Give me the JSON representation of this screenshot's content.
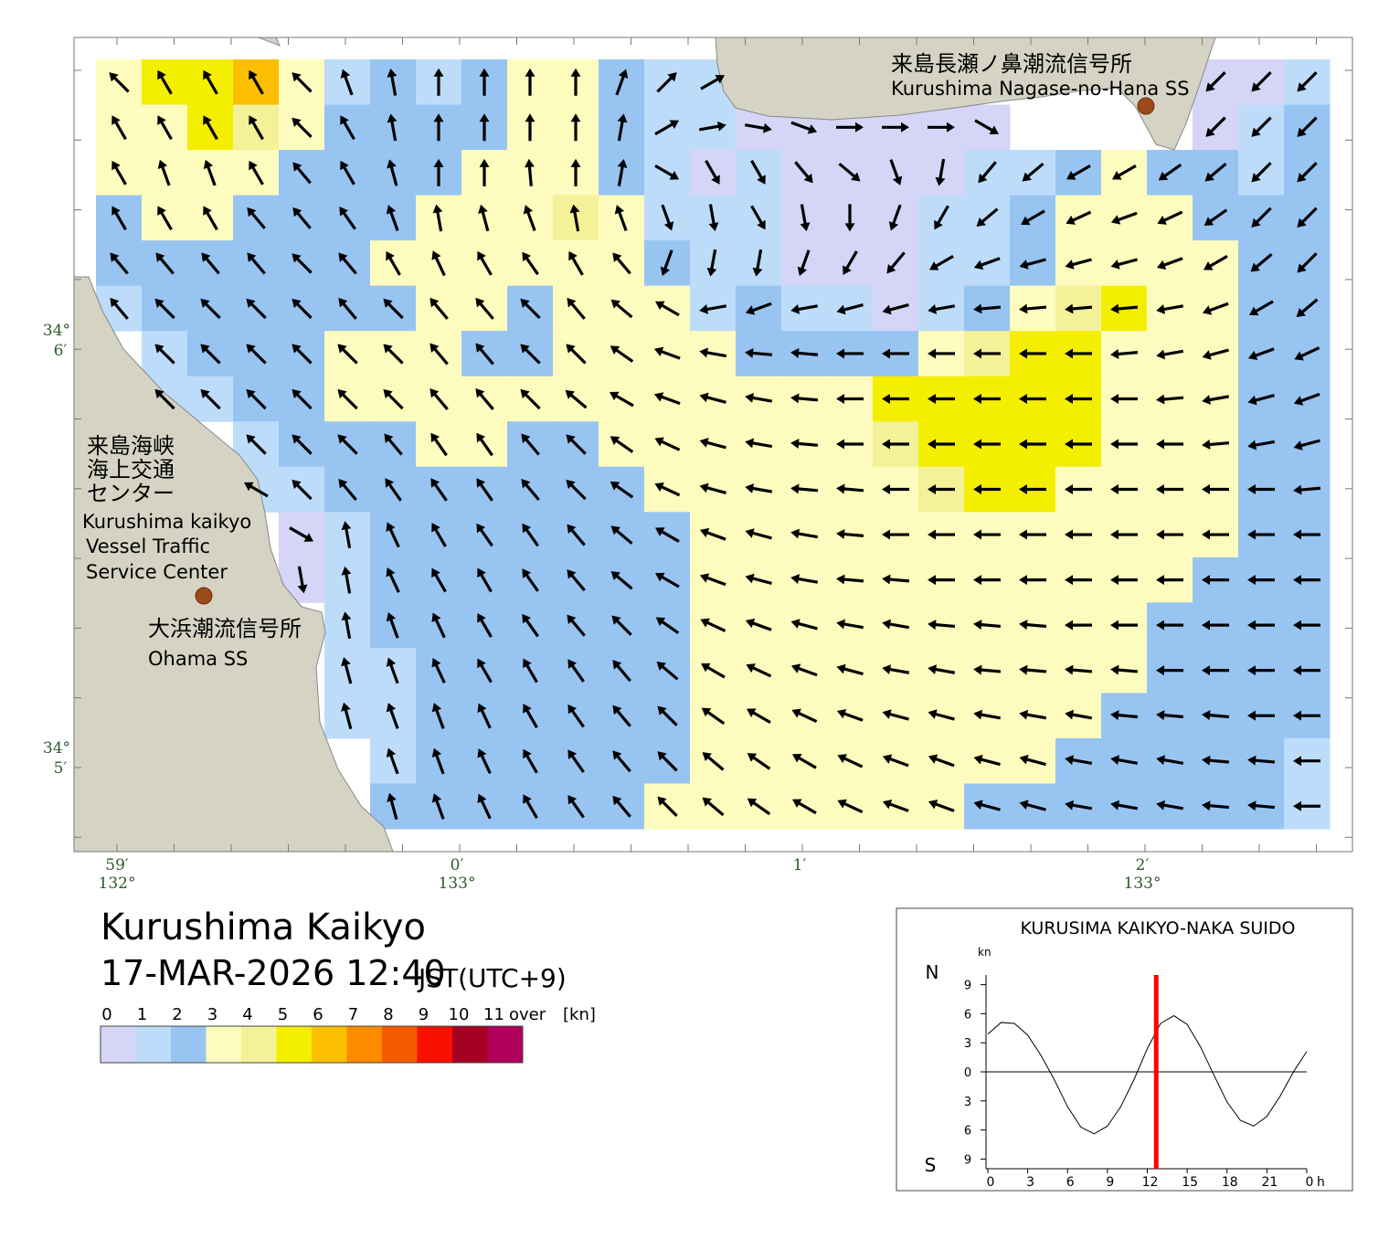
{
  "map": {
    "lat_labels": [
      {
        "deg": "34°",
        "min": "6′"
      },
      {
        "deg": "34°",
        "min": "5′"
      }
    ],
    "lon_labels": [
      {
        "min": "59′",
        "deg": "132°"
      },
      {
        "min": "0′",
        "deg": "133°"
      },
      {
        "min": "1′"
      },
      {
        "min": "2′",
        "deg": "133°"
      }
    ],
    "stations": {
      "nagase": {
        "name_ja": "来島長瀬ノ鼻潮流信号所",
        "name_en": "Kurushima Nagase-no-Hana SS"
      },
      "vts": {
        "name_ja": [
          "来島海峡",
          "海上交通",
          "センター"
        ],
        "name_en": [
          "Kurushima kaikyo",
          "Vessel Traffic",
          "Service Center"
        ]
      },
      "ohama": {
        "name_ja": "大浜潮流信号所",
        "name_en": "Ohama SS"
      }
    },
    "title": "Kurushima Kaikyo",
    "datetime": "17-MAR-2026 12:40",
    "timezone": "JST(UTC+9)",
    "legend": {
      "labels": [
        "0",
        "1",
        "2",
        "3",
        "4",
        "5",
        "6",
        "7",
        "8",
        "9",
        "10",
        "11"
      ],
      "over": "over",
      "unit": "[kn]",
      "colors": [
        "#d6d5f7",
        "#bddcfa",
        "#98c4f2",
        "#fdfcbe",
        "#f4f198",
        "#f4ee00",
        "#fbbf00",
        "#fd8a00",
        "#f55a00",
        "#fb1000",
        "#a40022",
        "#b0005a"
      ]
    },
    "current": {
      "speed": [
        [
          3,
          5,
          5,
          6,
          3,
          1,
          2,
          1,
          2,
          3,
          3,
          2,
          1,
          1,
          null,
          null,
          null,
          null,
          null,
          null,
          null,
          null,
          null,
          null,
          0,
          0,
          1
        ],
        [
          3,
          3,
          5,
          4,
          3,
          2,
          2,
          2,
          2,
          3,
          3,
          2,
          1,
          1,
          0,
          0,
          0,
          0,
          0,
          0,
          null,
          null,
          null,
          null,
          0,
          1,
          2
        ],
        [
          3,
          3,
          3,
          3,
          2,
          2,
          2,
          2,
          3,
          3,
          3,
          2,
          1,
          0,
          1,
          0,
          0,
          0,
          0,
          1,
          1,
          2,
          3,
          2,
          2,
          1,
          2
        ],
        [
          2,
          3,
          3,
          2,
          2,
          2,
          2,
          3,
          3,
          3,
          4,
          3,
          1,
          1,
          1,
          0,
          0,
          0,
          1,
          1,
          2,
          3,
          3,
          3,
          2,
          2,
          2
        ],
        [
          2,
          2,
          2,
          2,
          2,
          2,
          3,
          3,
          3,
          3,
          3,
          3,
          2,
          1,
          1,
          0,
          0,
          0,
          1,
          1,
          2,
          3,
          3,
          3,
          3,
          2,
          2
        ],
        [
          1,
          2,
          2,
          2,
          2,
          2,
          2,
          3,
          3,
          2,
          3,
          3,
          3,
          1,
          2,
          1,
          1,
          0,
          1,
          2,
          3,
          4,
          5,
          3,
          3,
          2,
          2
        ],
        [
          null,
          1,
          2,
          2,
          2,
          3,
          3,
          3,
          2,
          2,
          3,
          3,
          3,
          3,
          2,
          2,
          2,
          2,
          3,
          4,
          5,
          5,
          3,
          3,
          3,
          2,
          2
        ],
        [
          null,
          1,
          1,
          2,
          2,
          3,
          3,
          3,
          3,
          3,
          3,
          3,
          3,
          3,
          3,
          3,
          3,
          5,
          5,
          5,
          5,
          5,
          3,
          3,
          3,
          2,
          2
        ],
        [
          null,
          null,
          null,
          1,
          2,
          2,
          2,
          3,
          3,
          2,
          2,
          3,
          3,
          3,
          3,
          3,
          3,
          4,
          5,
          5,
          5,
          5,
          3,
          3,
          3,
          2,
          2
        ],
        [
          null,
          null,
          null,
          1,
          1,
          2,
          2,
          2,
          2,
          2,
          2,
          2,
          3,
          3,
          3,
          3,
          3,
          3,
          4,
          5,
          5,
          3,
          3,
          3,
          3,
          2,
          2
        ],
        [
          null,
          null,
          null,
          null,
          0,
          1,
          2,
          2,
          2,
          2,
          2,
          2,
          2,
          3,
          3,
          3,
          3,
          3,
          3,
          3,
          3,
          3,
          3,
          3,
          3,
          2,
          2
        ],
        [
          null,
          null,
          null,
          null,
          0,
          1,
          2,
          2,
          2,
          2,
          2,
          2,
          2,
          3,
          3,
          3,
          3,
          3,
          3,
          3,
          3,
          3,
          3,
          3,
          2,
          2,
          2
        ],
        [
          null,
          null,
          null,
          null,
          null,
          1,
          2,
          2,
          2,
          2,
          2,
          2,
          2,
          3,
          3,
          3,
          3,
          3,
          3,
          3,
          3,
          3,
          3,
          2,
          2,
          2,
          2
        ],
        [
          null,
          null,
          null,
          null,
          null,
          1,
          1,
          2,
          2,
          2,
          2,
          2,
          2,
          3,
          3,
          3,
          3,
          3,
          3,
          3,
          3,
          3,
          3,
          2,
          2,
          2,
          2
        ],
        [
          null,
          null,
          null,
          null,
          null,
          1,
          1,
          2,
          2,
          2,
          2,
          2,
          2,
          3,
          3,
          3,
          3,
          3,
          3,
          3,
          3,
          3,
          2,
          2,
          2,
          2,
          2
        ],
        [
          null,
          null,
          null,
          null,
          null,
          null,
          1,
          2,
          2,
          2,
          2,
          2,
          2,
          3,
          3,
          3,
          3,
          3,
          3,
          3,
          3,
          2,
          2,
          2,
          2,
          2,
          1
        ],
        [
          null,
          null,
          null,
          null,
          null,
          null,
          2,
          2,
          2,
          2,
          2,
          2,
          3,
          3,
          3,
          3,
          3,
          3,
          3,
          2,
          2,
          2,
          2,
          2,
          2,
          2,
          1
        ]
      ],
      "direction": [
        [
          315,
          330,
          330,
          330,
          315,
          340,
          350,
          0,
          0,
          0,
          0,
          20,
          45,
          60,
          null,
          null,
          null,
          null,
          null,
          null,
          null,
          null,
          null,
          null,
          225,
          225,
          225
        ],
        [
          330,
          330,
          330,
          330,
          315,
          330,
          350,
          0,
          0,
          0,
          0,
          10,
          60,
          80,
          100,
          110,
          90,
          90,
          90,
          120,
          null,
          null,
          null,
          null,
          225,
          225,
          225
        ],
        [
          330,
          340,
          340,
          330,
          320,
          330,
          345,
          0,
          0,
          355,
          0,
          10,
          120,
          150,
          150,
          140,
          130,
          160,
          190,
          220,
          230,
          240,
          240,
          235,
          230,
          225,
          225
        ],
        [
          330,
          330,
          330,
          320,
          320,
          325,
          340,
          350,
          345,
          340,
          350,
          340,
          160,
          170,
          150,
          170,
          180,
          200,
          210,
          230,
          240,
          245,
          250,
          245,
          235,
          225,
          225
        ],
        [
          320,
          320,
          320,
          320,
          315,
          320,
          330,
          335,
          330,
          325,
          330,
          320,
          200,
          190,
          190,
          200,
          210,
          220,
          240,
          250,
          255,
          255,
          255,
          250,
          240,
          230,
          225
        ],
        [
          320,
          315,
          315,
          315,
          315,
          320,
          315,
          320,
          320,
          315,
          320,
          310,
          300,
          260,
          250,
          260,
          255,
          255,
          260,
          265,
          265,
          265,
          265,
          260,
          250,
          240,
          230
        ],
        [
          null,
          315,
          315,
          315,
          315,
          315,
          315,
          320,
          320,
          315,
          315,
          305,
          290,
          280,
          275,
          275,
          270,
          270,
          270,
          270,
          270,
          270,
          265,
          260,
          255,
          250,
          245
        ],
        [
          null,
          315,
          315,
          315,
          315,
          315,
          315,
          320,
          320,
          315,
          310,
          300,
          290,
          285,
          280,
          275,
          270,
          270,
          270,
          270,
          270,
          270,
          270,
          265,
          260,
          255,
          250
        ],
        [
          null,
          null,
          null,
          315,
          315,
          315,
          320,
          325,
          325,
          320,
          315,
          305,
          295,
          285,
          280,
          275,
          270,
          270,
          270,
          270,
          270,
          270,
          270,
          270,
          265,
          260,
          255
        ],
        [
          null,
          null,
          null,
          300,
          315,
          320,
          325,
          325,
          325,
          320,
          315,
          305,
          295,
          285,
          280,
          275,
          275,
          270,
          270,
          270,
          270,
          270,
          270,
          270,
          270,
          270,
          265
        ],
        [
          null,
          null,
          null,
          null,
          120,
          350,
          335,
          330,
          325,
          325,
          320,
          310,
          300,
          290,
          285,
          280,
          275,
          270,
          270,
          270,
          270,
          270,
          270,
          270,
          270,
          270,
          270
        ],
        [
          null,
          null,
          null,
          null,
          170,
          350,
          335,
          330,
          330,
          325,
          320,
          310,
          300,
          290,
          285,
          280,
          275,
          275,
          270,
          270,
          270,
          270,
          270,
          270,
          270,
          270,
          270
        ],
        [
          null,
          null,
          null,
          null,
          null,
          350,
          340,
          335,
          330,
          325,
          320,
          315,
          305,
          295,
          290,
          285,
          280,
          280,
          275,
          275,
          275,
          270,
          270,
          270,
          270,
          270,
          270
        ],
        [
          null,
          null,
          null,
          null,
          null,
          345,
          340,
          335,
          330,
          330,
          325,
          320,
          310,
          300,
          295,
          290,
          285,
          280,
          280,
          275,
          275,
          275,
          275,
          270,
          270,
          270,
          270
        ],
        [
          null,
          null,
          null,
          null,
          null,
          345,
          340,
          340,
          335,
          330,
          325,
          320,
          315,
          305,
          300,
          295,
          290,
          285,
          285,
          280,
          280,
          280,
          275,
          275,
          275,
          270,
          270
        ],
        [
          null,
          null,
          null,
          null,
          null,
          null,
          340,
          340,
          335,
          330,
          325,
          320,
          315,
          310,
          305,
          300,
          295,
          290,
          290,
          285,
          285,
          280,
          280,
          280,
          275,
          275,
          270
        ],
        [
          null,
          null,
          null,
          null,
          null,
          null,
          345,
          340,
          335,
          330,
          325,
          320,
          315,
          310,
          305,
          300,
          295,
          290,
          290,
          285,
          285,
          280,
          280,
          280,
          275,
          275,
          270
        ]
      ]
    }
  },
  "chart_data": {
    "type": "line",
    "title": "KURUSIMA KAIKYO-NAKA SUIDO",
    "y_unit": "kn",
    "x_unit": "h",
    "north": "N",
    "south": "S",
    "x": [
      0,
      1,
      2,
      3,
      4,
      5,
      6,
      7,
      8,
      9,
      10,
      11,
      12,
      13,
      14,
      15,
      16,
      17,
      18,
      19,
      20,
      21,
      22,
      23,
      24
    ],
    "values": [
      3.9,
      5.1,
      5.0,
      3.8,
      1.7,
      -0.8,
      -3.6,
      -5.7,
      -6.4,
      -5.6,
      -3.6,
      -0.8,
      2.4,
      5.0,
      5.8,
      4.9,
      2.6,
      -0.3,
      -3.1,
      -5.0,
      -5.6,
      -4.6,
      -2.5,
      0.0,
      2.1
    ],
    "color": "#000000",
    "current_time": 12.67,
    "current_color": "#ff0000",
    "xlim": [
      0,
      24
    ],
    "ylim": [
      -10,
      10
    ],
    "xticks": [
      0,
      3,
      6,
      9,
      12,
      15,
      18,
      21,
      {
        "value": 24,
        "label": "0"
      }
    ],
    "yticks": [
      9,
      6,
      3,
      0,
      {
        "value": -3,
        "label": "3"
      },
      {
        "value": -6,
        "label": "6"
      },
      {
        "value": -9,
        "label": "9"
      }
    ]
  }
}
